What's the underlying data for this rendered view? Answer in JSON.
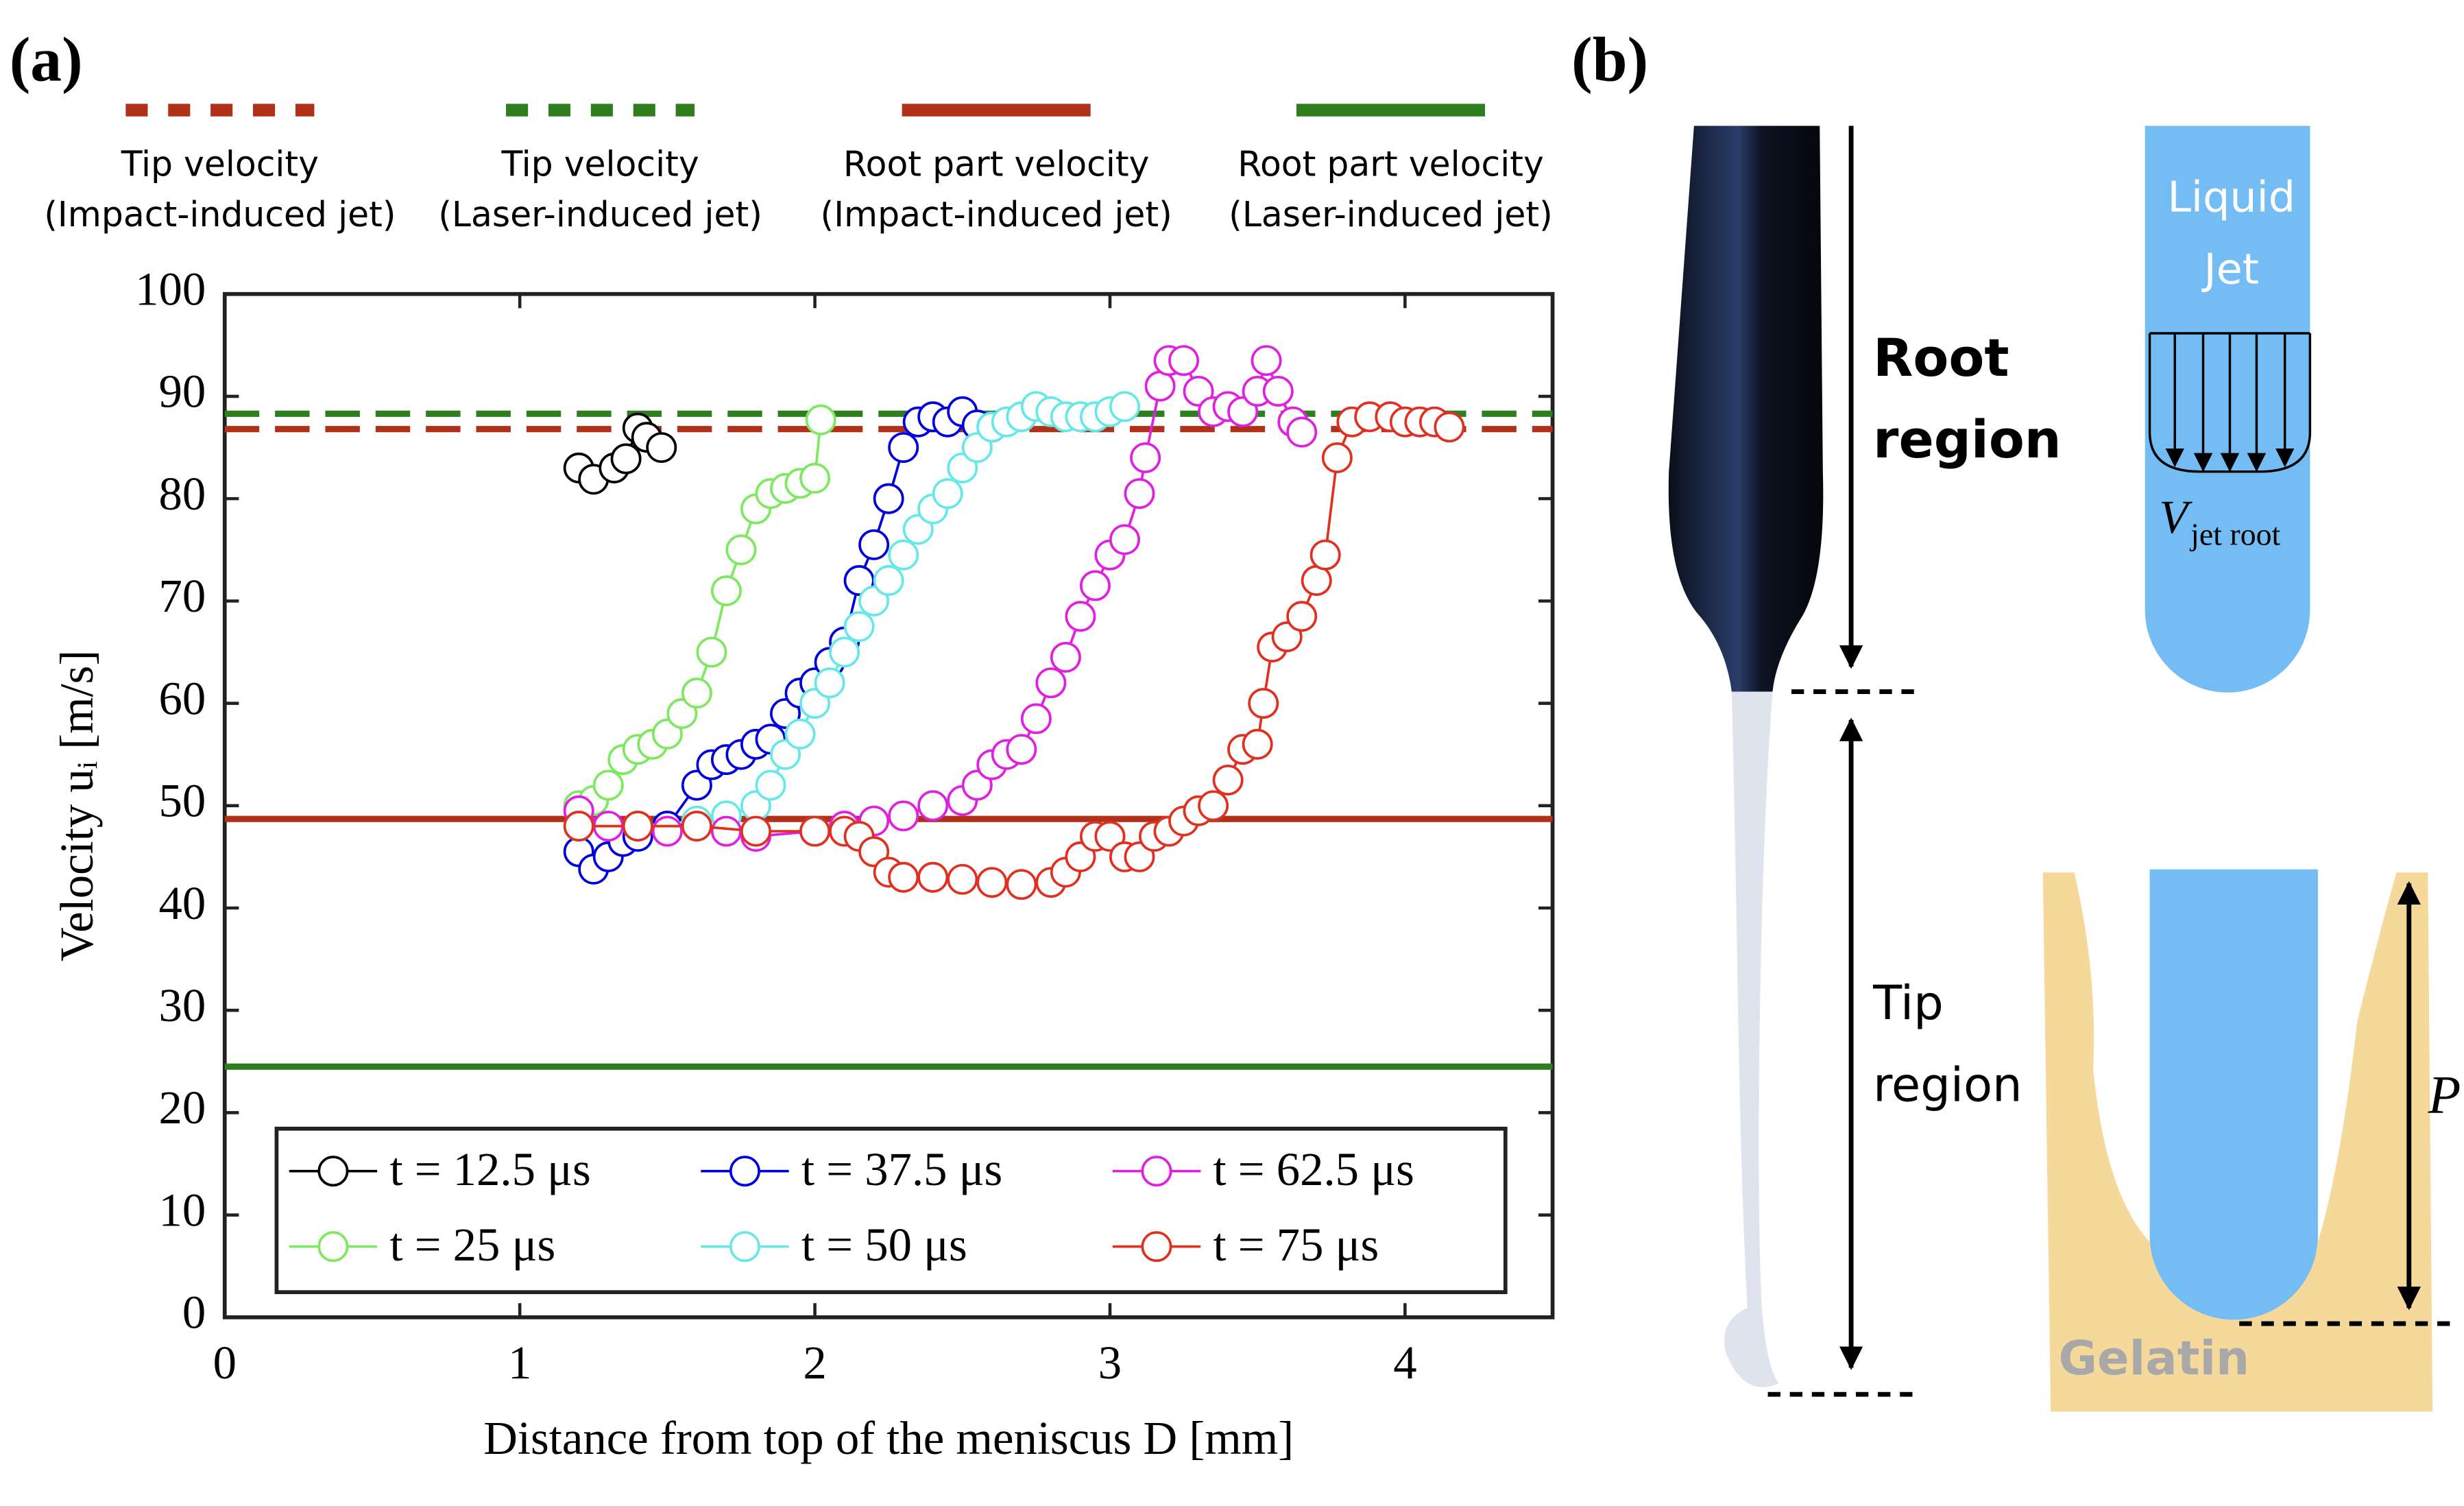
{
  "panel_labels": [
    "(a)",
    "(b)"
  ],
  "chart_data": {
    "type": "scatter",
    "xlabel": "Distance from top of the meniscus D [mm]",
    "ylabel": "Velocity uᵢ [m/s]",
    "xlim": [
      0,
      4.5
    ],
    "ylim": [
      0,
      100
    ],
    "xticks": [
      0,
      1,
      2,
      3,
      4
    ],
    "yticks": [
      0,
      10,
      20,
      30,
      40,
      50,
      60,
      70,
      80,
      90,
      100
    ],
    "legend_loc": "lower left",
    "legend_columns": 3,
    "reference_lines": [
      {
        "label": [
          "Tip velocity",
          "(Impact-induced jet)"
        ],
        "value": 86.8,
        "color": "#b03018",
        "style": "dashed"
      },
      {
        "label": [
          "Tip velocity",
          "(Laser-induced jet)"
        ],
        "value": 88.3,
        "color": "#2e7d1e",
        "style": "dashed"
      },
      {
        "label": [
          "Root part velocity",
          "(Impact-induced jet)"
        ],
        "value": 48.7,
        "color": "#b03018",
        "style": "solid"
      },
      {
        "label": [
          "Root part velocity",
          "(Laser-induced jet)"
        ],
        "value": 24.5,
        "color": "#2e7d1e",
        "style": "solid"
      }
    ],
    "series": [
      {
        "name": "t = 12.5 μs",
        "color": "#000000",
        "x": [
          1.2,
          1.25,
          1.32,
          1.36,
          1.4,
          1.43,
          1.48
        ],
        "values": [
          83,
          81.9,
          83,
          83.9,
          86.9,
          86,
          85
        ]
      },
      {
        "name": "t = 25 μs",
        "color": "#7ee860",
        "x": [
          1.2,
          1.25,
          1.3,
          1.35,
          1.4,
          1.45,
          1.5,
          1.55,
          1.6,
          1.65,
          1.7,
          1.75,
          1.8,
          1.85,
          1.9,
          1.95,
          2.0,
          2.02
        ],
        "values": [
          50,
          50.5,
          52,
          54.5,
          55.5,
          56,
          57,
          59,
          61,
          65,
          71,
          75,
          79,
          80.5,
          81,
          81.5,
          82,
          87.7
        ]
      },
      {
        "name": "t = 37.5 μs",
        "color": "#0000dd",
        "x": [
          1.2,
          1.25,
          1.3,
          1.35,
          1.4,
          1.5,
          1.6,
          1.65,
          1.7,
          1.75,
          1.8,
          1.85,
          1.9,
          1.95,
          2.0,
          2.05,
          2.1,
          2.15,
          2.2,
          2.25,
          2.3,
          2.35,
          2.4,
          2.45,
          2.5,
          2.55,
          2.6
        ],
        "values": [
          45.5,
          43.8,
          45,
          46.5,
          47,
          48,
          52,
          54,
          54.5,
          55,
          56,
          56.5,
          59,
          61,
          62,
          64,
          66,
          72,
          75.5,
          80,
          85,
          87.5,
          88,
          87.5,
          88.5,
          87.2,
          87
        ]
      },
      {
        "name": "t = 50 μs",
        "color": "#66e8e8",
        "x": [
          1.2,
          1.4,
          1.6,
          1.7,
          1.8,
          1.85,
          1.9,
          1.95,
          2.0,
          2.05,
          2.1,
          2.15,
          2.2,
          2.25,
          2.3,
          2.35,
          2.4,
          2.45,
          2.5,
          2.55,
          2.6,
          2.65,
          2.7,
          2.75,
          2.8,
          2.85,
          2.9,
          2.95,
          3.0,
          3.05
        ],
        "values": [
          48,
          48,
          48.5,
          49,
          50,
          52,
          55,
          57,
          60,
          62,
          65,
          67.5,
          70,
          72,
          74.5,
          77,
          79,
          80.5,
          83,
          85,
          87,
          87.5,
          88,
          89,
          88.5,
          88,
          88,
          88,
          88.5,
          89
        ]
      },
      {
        "name": "t = 62.5 μs",
        "color": "#e020e0",
        "x": [
          1.2,
          1.3,
          1.5,
          1.7,
          1.8,
          2.0,
          2.1,
          2.2,
          2.3,
          2.4,
          2.5,
          2.55,
          2.6,
          2.65,
          2.7,
          2.75,
          2.8,
          2.85,
          2.9,
          2.95,
          3.0,
          3.05,
          3.1,
          3.12,
          3.17,
          3.2,
          3.25,
          3.3,
          3.35,
          3.4,
          3.45,
          3.5,
          3.53,
          3.57,
          3.62,
          3.65
        ],
        "values": [
          49.5,
          48,
          47.5,
          47.5,
          47,
          47.5,
          48,
          48.5,
          49,
          50,
          50.5,
          52,
          54,
          55,
          55.5,
          58.5,
          62,
          64.5,
          68.5,
          71.5,
          74.5,
          76,
          80.5,
          84,
          91,
          93.5,
          93.5,
          90.5,
          88.5,
          89,
          88.5,
          90.5,
          93.5,
          90.5,
          87.5,
          86.5
        ]
      },
      {
        "name": "t = 75 μs",
        "color": "#e03020",
        "x": [
          1.2,
          1.4,
          1.6,
          1.8,
          2.0,
          2.1,
          2.15,
          2.2,
          2.25,
          2.3,
          2.4,
          2.5,
          2.6,
          2.7,
          2.8,
          2.85,
          2.9,
          2.95,
          3.0,
          3.05,
          3.1,
          3.15,
          3.2,
          3.25,
          3.3,
          3.35,
          3.4,
          3.45,
          3.5,
          3.52,
          3.55,
          3.6,
          3.65,
          3.7,
          3.73,
          3.77,
          3.82,
          3.88,
          3.95,
          4.0,
          4.05,
          4.1,
          4.15
        ],
        "values": [
          48,
          48,
          48,
          47.5,
          47.5,
          47.5,
          47,
          45.5,
          43.5,
          43,
          43,
          42.8,
          42.5,
          42.3,
          42.5,
          43.5,
          45,
          47,
          47,
          45,
          45,
          47,
          47.5,
          48.5,
          49.5,
          50,
          52.5,
          55.5,
          56,
          60,
          65.5,
          66.5,
          68.5,
          72,
          74.5,
          84,
          87.5,
          88,
          88,
          87.5,
          87.5,
          87.5,
          87
        ]
      }
    ]
  },
  "diagram": {
    "root_label": [
      "Root",
      "region"
    ],
    "tip_label": [
      "Tip",
      "region"
    ],
    "jet_label": [
      "Liquid",
      "Jet"
    ],
    "velocity_symbol": "V",
    "velocity_subscript": "jet root",
    "depth_symbol": "P",
    "gelatin_label": "Gelatin"
  }
}
